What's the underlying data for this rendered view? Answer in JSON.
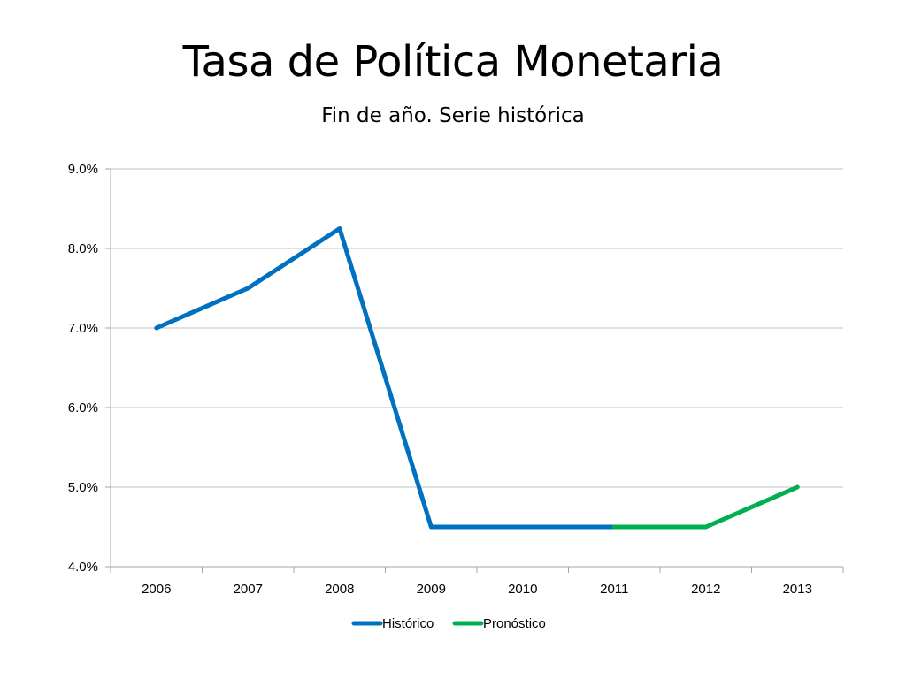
{
  "slide": {
    "title": "Tasa de Política Monetaria",
    "subtitle": "Fin de año. Serie histórica"
  },
  "colors": {
    "historico": "#0070c0",
    "pronostico": "#00b050",
    "grid": "#c0c0c0",
    "axis": "#a6a6a6"
  },
  "chart_data": {
    "type": "line",
    "categories": [
      "2006",
      "2007",
      "2008",
      "2009",
      "2010",
      "2011",
      "2012",
      "2013"
    ],
    "ylim": [
      4.0,
      9.0
    ],
    "yticks": [
      4.0,
      5.0,
      6.0,
      7.0,
      8.0,
      9.0
    ],
    "ytick_labels": [
      "4.0%",
      "5.0%",
      "6.0%",
      "7.0%",
      "8.0%",
      "9.0%"
    ],
    "grid": true,
    "legend_position": "bottom",
    "series": [
      {
        "name": "Histórico",
        "color": "#0070c0",
        "values": [
          7.0,
          7.5,
          8.25,
          4.5,
          4.5,
          4.5,
          null,
          null
        ]
      },
      {
        "name": "Pronóstico",
        "color": "#00b050",
        "values": [
          null,
          null,
          null,
          null,
          null,
          4.5,
          4.5,
          5.0
        ]
      }
    ]
  }
}
